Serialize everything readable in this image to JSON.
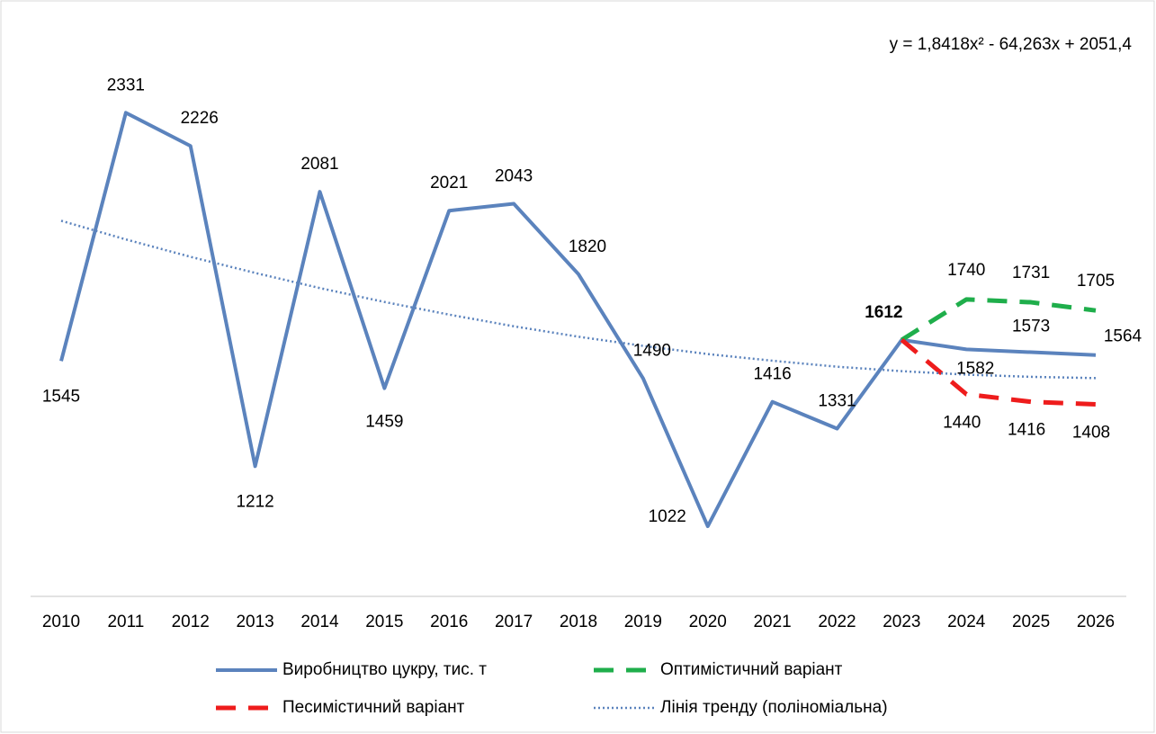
{
  "chart_data": {
    "type": "line",
    "annotations": [
      "y = 1,8418x² - 64,263x + 2051,4"
    ],
    "categories": [
      "2010",
      "2011",
      "2012",
      "2013",
      "2014",
      "2015",
      "2016",
      "2017",
      "2018",
      "2019",
      "2020",
      "2021",
      "2022",
      "2023",
      "2024",
      "2025",
      "2026"
    ],
    "series": [
      {
        "name": "Виробництво цукру, тис. т",
        "color": "#5b83bd",
        "style": "solid",
        "labels": true,
        "values": [
          1545,
          2331,
          2226,
          1212,
          2081,
          1459,
          2021,
          2043,
          1820,
          1490,
          1022,
          1416,
          1331,
          1612,
          1582,
          1573,
          1564
        ]
      },
      {
        "name": "Оптимістичний варіант",
        "color": "#1fae4b",
        "style": "dashed",
        "labels": true,
        "values": [
          null,
          null,
          null,
          null,
          null,
          null,
          null,
          null,
          null,
          null,
          null,
          null,
          null,
          1612,
          1740,
          1731,
          1705
        ]
      },
      {
        "name": "Песимістичний варіант",
        "color": "#ee1c1c",
        "style": "dashed",
        "labels": true,
        "values": [
          null,
          null,
          null,
          null,
          null,
          null,
          null,
          null,
          null,
          null,
          null,
          null,
          null,
          1612,
          1440,
          1416,
          1408
        ]
      },
      {
        "name": "Лінія тренду (поліноміальна)",
        "color": "#5b83bd",
        "style": "dotted",
        "labels": false,
        "values": [
          1989,
          1930,
          1875,
          1824,
          1776,
          1732,
          1692,
          1655,
          1622,
          1593,
          1567,
          1546,
          1527,
          1513,
          1502,
          1495,
          1491
        ]
      }
    ],
    "ylim": [
      800,
      2500
    ],
    "grid": false
  }
}
